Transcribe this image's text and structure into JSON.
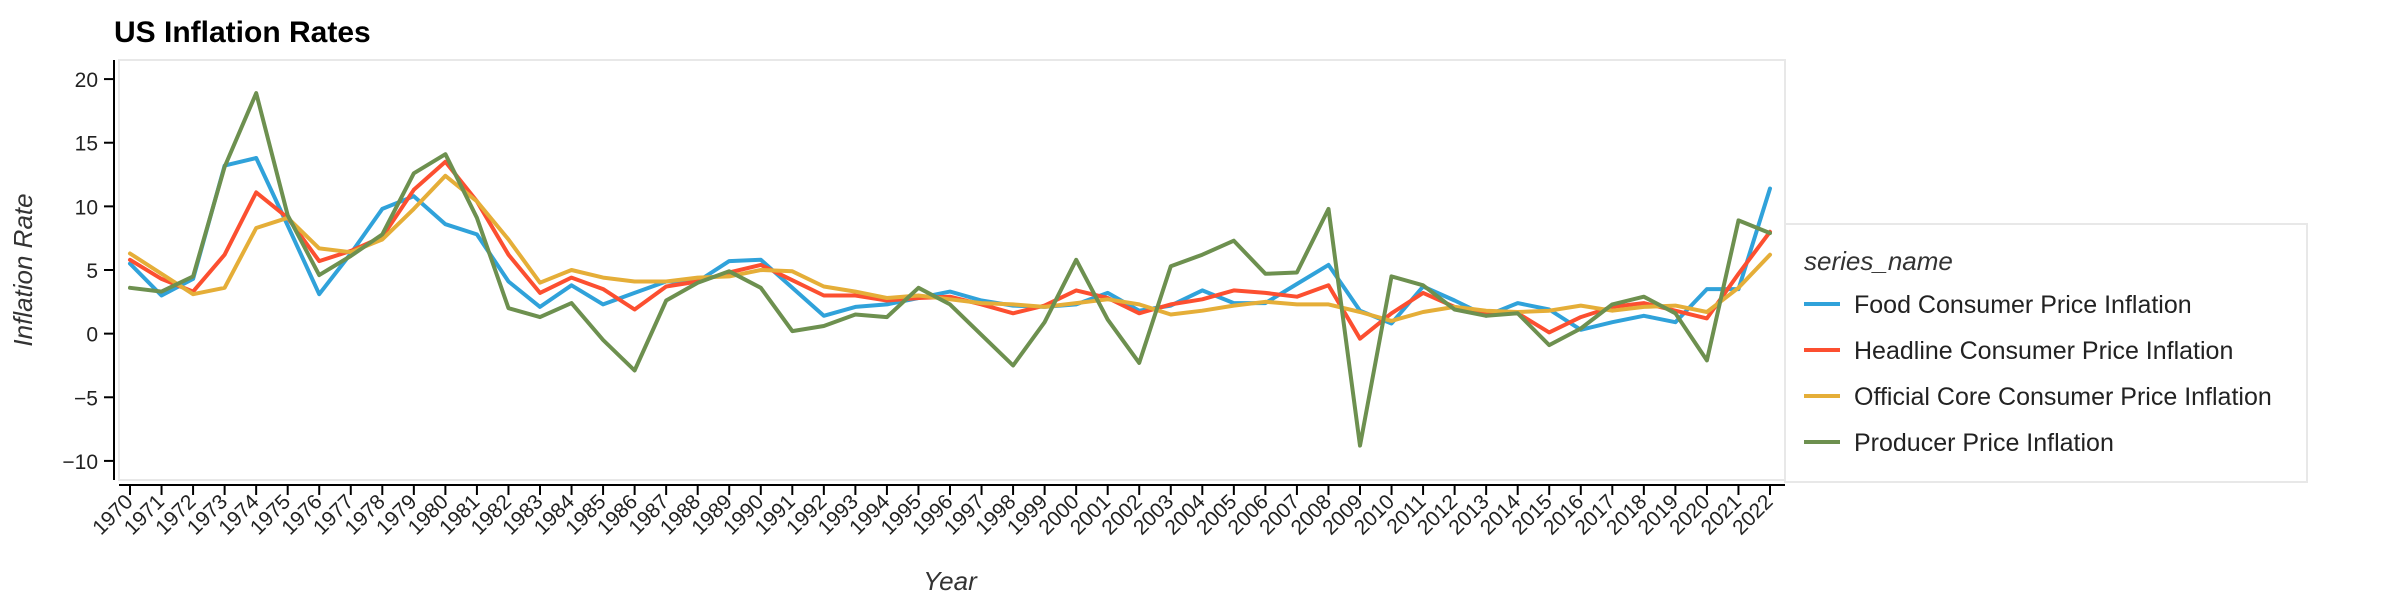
{
  "chart_data": {
    "type": "line",
    "title": "US Inflation Rates",
    "xlabel": "Year",
    "ylabel": "Inflation Rate",
    "ylim": [
      -11.5,
      21.5
    ],
    "yticks": [
      -10,
      -5,
      0,
      5,
      10,
      15,
      20
    ],
    "grid": false,
    "legend_title": "series_name",
    "legend_position": "right",
    "x": [
      "1970",
      "1971",
      "1972",
      "1973",
      "1974",
      "1975",
      "1976",
      "1977",
      "1978",
      "1979",
      "1980",
      "1981",
      "1982",
      "1983",
      "1984",
      "1985",
      "1986",
      "1987",
      "1988",
      "1989",
      "1990",
      "1991",
      "1992",
      "1993",
      "1994",
      "1995",
      "1996",
      "1997",
      "1998",
      "1999",
      "2000",
      "2001",
      "2002",
      "2003",
      "2004",
      "2005",
      "2006",
      "2007",
      "2008",
      "2009",
      "2010",
      "2011",
      "2012",
      "2013",
      "2014",
      "2015",
      "2016",
      "2017",
      "2018",
      "2019",
      "2020",
      "2021",
      "2022"
    ],
    "series": [
      {
        "name": "Food Consumer Price Inflation",
        "color": "#30a2da",
        "values": [
          5.5,
          3.0,
          4.3,
          13.2,
          13.8,
          8.5,
          3.1,
          6.3,
          9.8,
          10.8,
          8.6,
          7.8,
          4.1,
          2.1,
          3.8,
          2.3,
          3.2,
          4.1,
          4.1,
          5.7,
          5.8,
          3.6,
          1.4,
          2.1,
          2.3,
          2.8,
          3.3,
          2.6,
          2.2,
          2.1,
          2.3,
          3.2,
          1.8,
          2.2,
          3.4,
          2.4,
          2.4,
          3.9,
          5.4,
          1.8,
          0.8,
          3.7,
          2.6,
          1.4,
          2.4,
          1.9,
          0.3,
          0.9,
          1.4,
          0.9,
          3.5,
          3.5,
          11.4
        ]
      },
      {
        "name": "Headline Consumer Price Inflation",
        "color": "#fc4f30",
        "values": [
          5.8,
          4.3,
          3.3,
          6.2,
          11.1,
          9.1,
          5.7,
          6.5,
          7.6,
          11.3,
          13.5,
          10.4,
          6.2,
          3.2,
          4.4,
          3.5,
          1.9,
          3.7,
          4.1,
          4.8,
          5.4,
          4.2,
          3.0,
          3.0,
          2.6,
          2.8,
          2.9,
          2.3,
          1.6,
          2.2,
          3.4,
          2.8,
          1.6,
          2.3,
          2.7,
          3.4,
          3.2,
          2.9,
          3.8,
          -0.4,
          1.6,
          3.2,
          2.1,
          1.5,
          1.6,
          0.1,
          1.3,
          2.1,
          2.4,
          1.8,
          1.2,
          4.7,
          8.0
        ]
      },
      {
        "name": "Official Core Consumer Price Inflation",
        "color": "#e5ae38",
        "values": [
          6.3,
          4.7,
          3.1,
          3.6,
          8.3,
          9.1,
          6.7,
          6.4,
          7.4,
          9.8,
          12.4,
          10.4,
          7.4,
          4.0,
          5.0,
          4.4,
          4.1,
          4.1,
          4.4,
          4.5,
          5.0,
          4.9,
          3.7,
          3.3,
          2.8,
          3.0,
          2.7,
          2.4,
          2.3,
          2.1,
          2.4,
          2.7,
          2.3,
          1.5,
          1.8,
          2.2,
          2.5,
          2.3,
          2.3,
          1.7,
          1.0,
          1.7,
          2.1,
          1.8,
          1.7,
          1.8,
          2.2,
          1.8,
          2.1,
          2.2,
          1.7,
          3.6,
          6.2
        ]
      },
      {
        "name": "Producer Price Inflation",
        "color": "#6d904f",
        "values": [
          3.6,
          3.3,
          4.5,
          13.1,
          18.9,
          9.3,
          4.6,
          6.1,
          7.8,
          12.6,
          14.1,
          9.1,
          2.0,
          1.3,
          2.4,
          -0.5,
          -2.9,
          2.6,
          4.0,
          4.9,
          3.6,
          0.2,
          0.6,
          1.5,
          1.3,
          3.6,
          2.3,
          -0.1,
          -2.5,
          0.9,
          5.8,
          1.1,
          -2.3,
          5.3,
          6.2,
          7.3,
          4.7,
          4.8,
          9.8,
          -8.8,
          4.5,
          3.8,
          1.9,
          1.4,
          1.6,
          -0.9,
          0.4,
          2.3,
          2.9,
          1.6,
          -2.1,
          8.9,
          7.9
        ]
      }
    ]
  }
}
